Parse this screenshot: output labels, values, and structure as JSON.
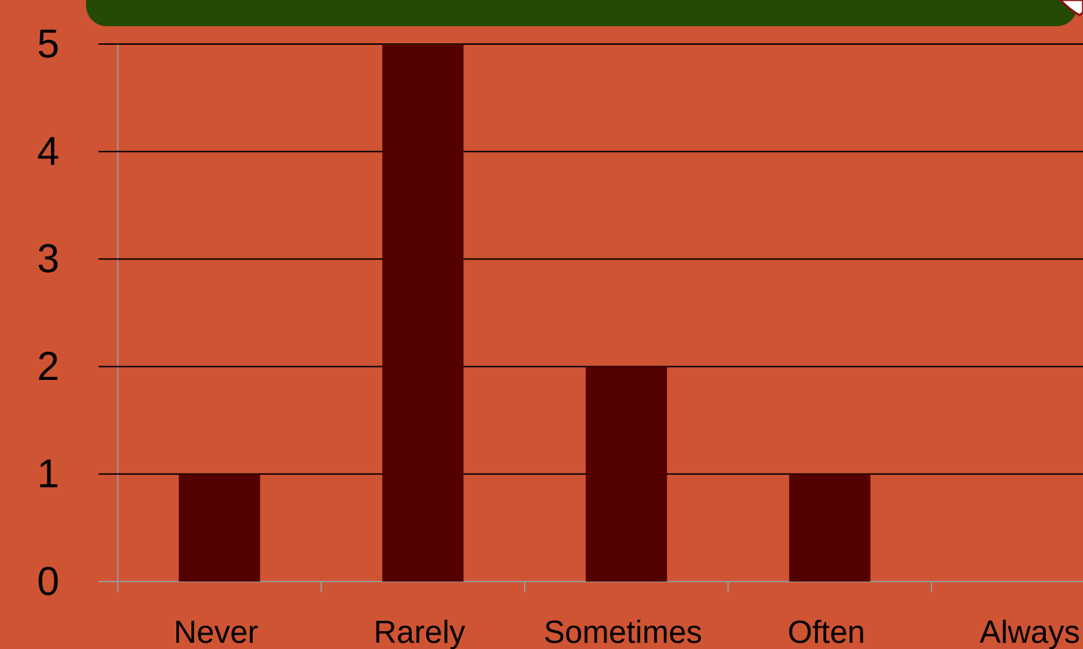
{
  "chart_data": {
    "type": "bar",
    "categories": [
      "Never",
      "Rarely",
      "Sometimes",
      "Often",
      "Always"
    ],
    "values": [
      1,
      5,
      2,
      1,
      0
    ],
    "color": "#520000",
    "ylim": [
      0,
      5
    ],
    "yticks": [
      0,
      1,
      2,
      3,
      4,
      5
    ],
    "grid": true
  }
}
